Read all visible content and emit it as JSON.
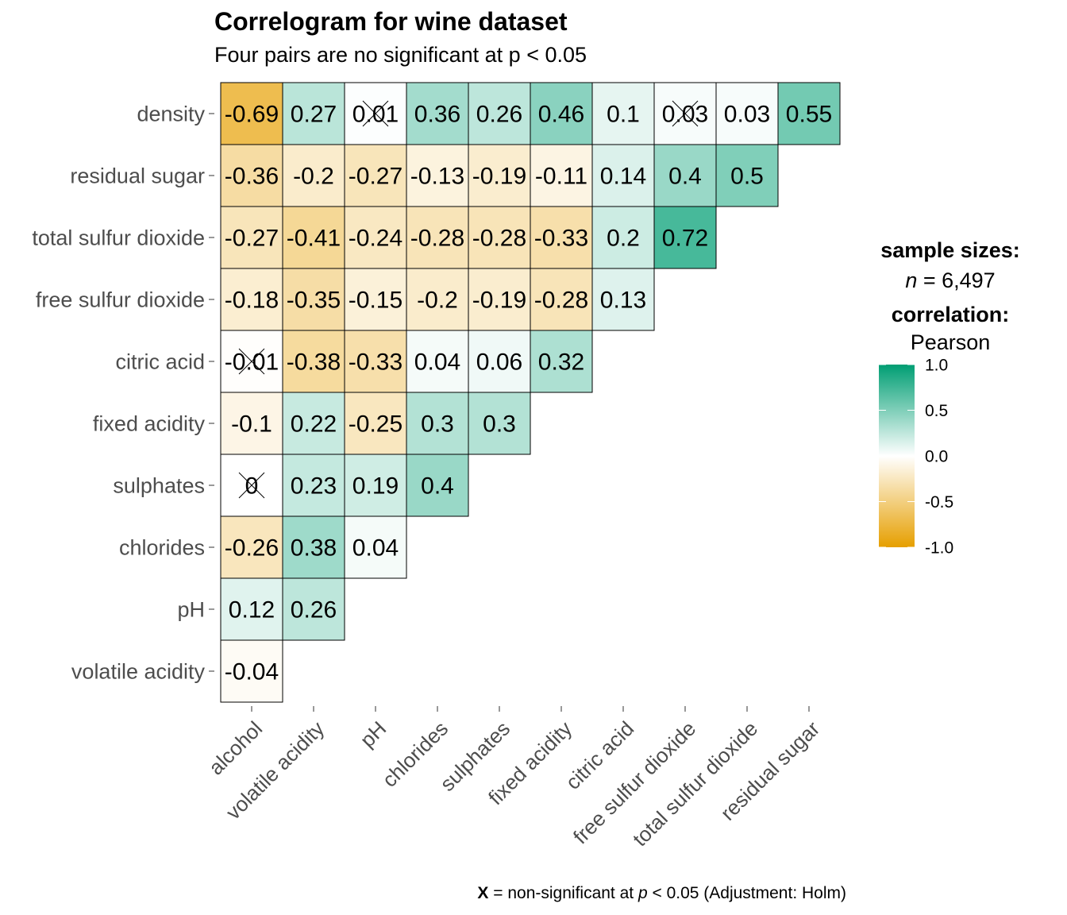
{
  "chart_data": {
    "type": "heatmap",
    "title": "Correlogram for wine dataset",
    "subtitle": "Four pairs are no significant at p < 0.05",
    "columns": [
      "alcohol",
      "volatile acidity",
      "pH",
      "chlorides",
      "sulphates",
      "fixed acidity",
      "citric acid",
      "free sulfur dioxide",
      "total sulfur dioxide",
      "residual sugar"
    ],
    "rows": [
      "density",
      "residual sugar",
      "total sulfur dioxide",
      "free sulfur dioxide",
      "citric acid",
      "fixed acidity",
      "sulphates",
      "chlorides",
      "pH",
      "volatile acidity"
    ],
    "values": [
      [
        -0.69,
        0.27,
        0.01,
        0.36,
        0.26,
        0.46,
        0.1,
        0.03,
        0.03,
        0.55
      ],
      [
        -0.36,
        -0.2,
        -0.27,
        -0.13,
        -0.19,
        -0.11,
        0.14,
        0.4,
        0.5
      ],
      [
        -0.27,
        -0.41,
        -0.24,
        -0.28,
        -0.28,
        -0.33,
        0.2,
        0.72
      ],
      [
        -0.18,
        -0.35,
        -0.15,
        -0.2,
        -0.19,
        -0.28,
        0.13
      ],
      [
        -0.01,
        -0.38,
        -0.33,
        0.04,
        0.06,
        0.32
      ],
      [
        -0.1,
        0.22,
        -0.25,
        0.3,
        0.3
      ],
      [
        0,
        0.23,
        0.19,
        0.4
      ],
      [
        -0.26,
        0.38,
        0.04
      ],
      [
        0.12,
        0.26
      ],
      [
        -0.04
      ]
    ],
    "significant": [
      [
        true,
        true,
        false,
        true,
        true,
        true,
        true,
        false,
        true,
        true
      ],
      [
        true,
        true,
        true,
        true,
        true,
        true,
        true,
        true,
        true
      ],
      [
        true,
        true,
        true,
        true,
        true,
        true,
        true,
        true
      ],
      [
        true,
        true,
        true,
        true,
        true,
        true,
        true
      ],
      [
        false,
        true,
        true,
        true,
        true,
        true
      ],
      [
        true,
        true,
        true,
        true,
        true
      ],
      [
        false,
        true,
        true,
        true
      ],
      [
        true,
        true,
        true
      ],
      [
        true,
        true
      ],
      [
        true
      ]
    ],
    "colors": {
      "low": "#E69F00",
      "mid": "#FFFFFF",
      "high": "#009E73"
    },
    "legend": {
      "sample_title": "sample sizes:",
      "sample_n_symbol": "n",
      "sample_n_text": " = 6,497",
      "title": "correlation:",
      "method": "Pearson",
      "range": [
        -1,
        1
      ],
      "ticks": [
        1.0,
        0.5,
        0.0,
        -0.5,
        -1.0
      ],
      "tick_labels": [
        "1.0",
        "0.5",
        "0.0",
        "-0.5",
        "-1.0"
      ]
    },
    "caption": {
      "mark": "X",
      "text_a": " = non-significant at ",
      "p_symbol": "p",
      "text_b": " < 0.05 (Adjustment: Holm)"
    }
  }
}
